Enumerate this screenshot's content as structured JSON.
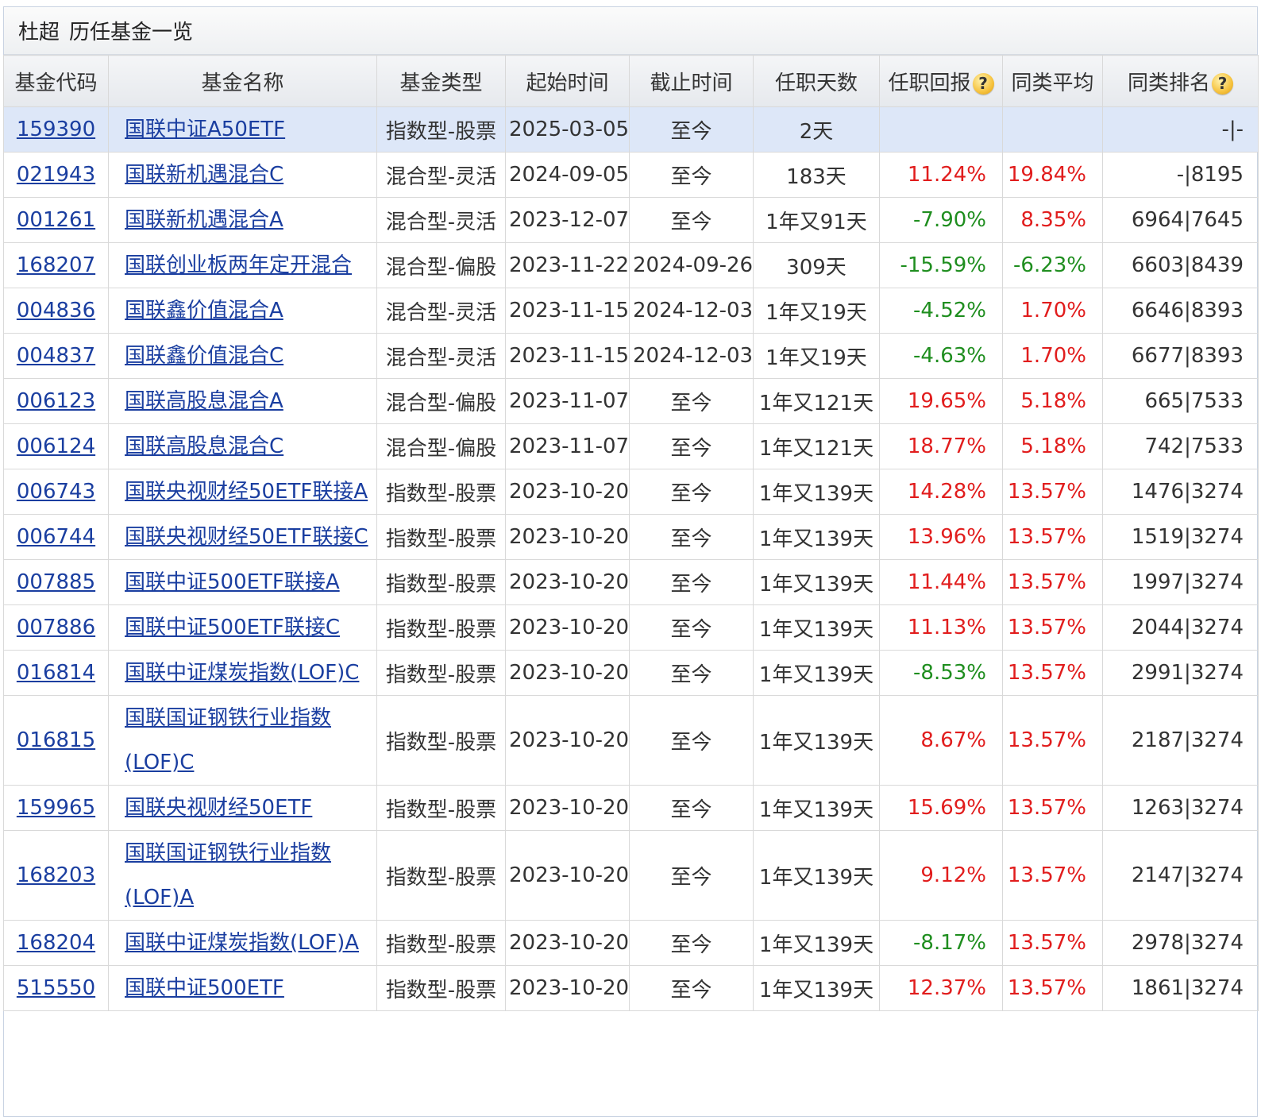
{
  "title": {
    "manager": "杜超",
    "text": "历任基金一览"
  },
  "help_glyph": "?",
  "columns": [
    "基金代码",
    "基金名称",
    "基金类型",
    "起始时间",
    "截止时间",
    "任职天数",
    "任职回报",
    "同类平均",
    "同类排名"
  ],
  "colors": {
    "positive": "#e11d1d",
    "negative": "#1f8e1f",
    "highlight_row": "#dde7f8",
    "link": "#1a3ea0"
  },
  "rows": [
    {
      "code": "159390",
      "name": "国联中证A50ETF",
      "type": "指数型-股票",
      "start": "2025-03-05",
      "end": "至今",
      "days": "2天",
      "ret": "",
      "avg": "",
      "rank": "-|-",
      "highlight": true
    },
    {
      "code": "021943",
      "name": "国联新机遇混合C",
      "type": "混合型-灵活",
      "start": "2024-09-05",
      "end": "至今",
      "days": "183天",
      "ret": "11.24%",
      "avg": "19.84%",
      "rank": "-|8195"
    },
    {
      "code": "001261",
      "name": "国联新机遇混合A",
      "type": "混合型-灵活",
      "start": "2023-12-07",
      "end": "至今",
      "days": "1年又91天",
      "ret": "-7.90%",
      "avg": "8.35%",
      "rank": "6964|7645"
    },
    {
      "code": "168207",
      "name": "国联创业板两年定开混合",
      "type": "混合型-偏股",
      "start": "2023-11-22",
      "end": "2024-09-26",
      "days": "309天",
      "ret": "-15.59%",
      "avg": "-6.23%",
      "rank": "6603|8439"
    },
    {
      "code": "004836",
      "name": "国联鑫价值混合A",
      "type": "混合型-灵活",
      "start": "2023-11-15",
      "end": "2024-12-03",
      "days": "1年又19天",
      "ret": "-4.52%",
      "avg": "1.70%",
      "rank": "6646|8393"
    },
    {
      "code": "004837",
      "name": "国联鑫价值混合C",
      "type": "混合型-灵活",
      "start": "2023-11-15",
      "end": "2024-12-03",
      "days": "1年又19天",
      "ret": "-4.63%",
      "avg": "1.70%",
      "rank": "6677|8393"
    },
    {
      "code": "006123",
      "name": "国联高股息混合A",
      "type": "混合型-偏股",
      "start": "2023-11-07",
      "end": "至今",
      "days": "1年又121天",
      "ret": "19.65%",
      "avg": "5.18%",
      "rank": "665|7533"
    },
    {
      "code": "006124",
      "name": "国联高股息混合C",
      "type": "混合型-偏股",
      "start": "2023-11-07",
      "end": "至今",
      "days": "1年又121天",
      "ret": "18.77%",
      "avg": "5.18%",
      "rank": "742|7533"
    },
    {
      "code": "006743",
      "name": "国联央视财经50ETF联接A",
      "type": "指数型-股票",
      "start": "2023-10-20",
      "end": "至今",
      "days": "1年又139天",
      "ret": "14.28%",
      "avg": "13.57%",
      "rank": "1476|3274"
    },
    {
      "code": "006744",
      "name": "国联央视财经50ETF联接C",
      "type": "指数型-股票",
      "start": "2023-10-20",
      "end": "至今",
      "days": "1年又139天",
      "ret": "13.96%",
      "avg": "13.57%",
      "rank": "1519|3274"
    },
    {
      "code": "007885",
      "name": "国联中证500ETF联接A",
      "type": "指数型-股票",
      "start": "2023-10-20",
      "end": "至今",
      "days": "1年又139天",
      "ret": "11.44%",
      "avg": "13.57%",
      "rank": "1997|3274"
    },
    {
      "code": "007886",
      "name": "国联中证500ETF联接C",
      "type": "指数型-股票",
      "start": "2023-10-20",
      "end": "至今",
      "days": "1年又139天",
      "ret": "11.13%",
      "avg": "13.57%",
      "rank": "2044|3274"
    },
    {
      "code": "016814",
      "name": "国联中证煤炭指数(LOF)C",
      "type": "指数型-股票",
      "start": "2023-10-20",
      "end": "至今",
      "days": "1年又139天",
      "ret": "-8.53%",
      "avg": "13.57%",
      "rank": "2991|3274"
    },
    {
      "code": "016815",
      "name": "国联国证钢铁行业指数(LOF)C",
      "type": "指数型-股票",
      "start": "2023-10-20",
      "end": "至今",
      "days": "1年又139天",
      "ret": "8.67%",
      "avg": "13.57%",
      "rank": "2187|3274"
    },
    {
      "code": "159965",
      "name": "国联央视财经50ETF",
      "type": "指数型-股票",
      "start": "2023-10-20",
      "end": "至今",
      "days": "1年又139天",
      "ret": "15.69%",
      "avg": "13.57%",
      "rank": "1263|3274"
    },
    {
      "code": "168203",
      "name": "国联国证钢铁行业指数(LOF)A",
      "type": "指数型-股票",
      "start": "2023-10-20",
      "end": "至今",
      "days": "1年又139天",
      "ret": "9.12%",
      "avg": "13.57%",
      "rank": "2147|3274"
    },
    {
      "code": "168204",
      "name": "国联中证煤炭指数(LOF)A",
      "type": "指数型-股票",
      "start": "2023-10-20",
      "end": "至今",
      "days": "1年又139天",
      "ret": "-8.17%",
      "avg": "13.57%",
      "rank": "2978|3274"
    },
    {
      "code": "515550",
      "name": "国联中证500ETF",
      "type": "指数型-股票",
      "start": "2023-10-20",
      "end": "至今",
      "days": "1年又139天",
      "ret": "12.37%",
      "avg": "13.57%",
      "rank": "1861|3274"
    }
  ]
}
